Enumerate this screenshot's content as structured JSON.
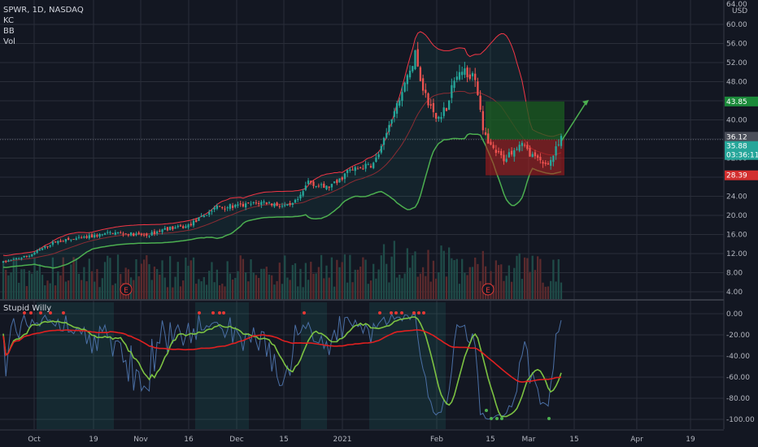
{
  "header": {
    "symbol_line": "SPWR, 1D, NASDAQ",
    "indicators": [
      "KC",
      "BB",
      "Vol"
    ],
    "currency": "USD",
    "top_clipped_tick": "64.00"
  },
  "lower_pane": {
    "title": "Stupid Willy"
  },
  "colors": {
    "background": "#131722",
    "grid": "#2a2e39",
    "up": "#26a69a",
    "down": "#ef5350",
    "keltner": "#f23645",
    "bollinger": "#4caf50",
    "volume_up": "#1f4b48",
    "volume_down": "#5a2a2d",
    "target_zone": "#1b5e20",
    "stop_zone": "#b71c1c",
    "willy_line": "#4a6fa5",
    "willy_fast": "#7cc242",
    "willy_slow": "#e02020",
    "axis_text": "#b2b5be"
  },
  "chart_data": [
    {
      "type": "candlestick",
      "symbol": "SPWR",
      "interval": "1D",
      "exchange": "NASDAQ",
      "x_ticks": [
        "Oct",
        "19",
        "Nov",
        "16",
        "Dec",
        "15",
        "2021",
        "Feb",
        "15",
        "Mar",
        "15",
        "Apr",
        "19"
      ],
      "y_ticks": [
        "60.00",
        "56.00",
        "52.00",
        "48.00",
        "44.00",
        "40.00",
        "36.00",
        "32.00",
        "28.00",
        "24.00",
        "20.00",
        "16.00",
        "12.00",
        "8.00",
        "4.00"
      ],
      "ylim": [
        2,
        63
      ],
      "price_labels": [
        {
          "text": "43.85",
          "value": 43.85,
          "color": "#1b8a3a"
        },
        {
          "text": "36.12",
          "value": 36.12,
          "color": "#4a4e59"
        },
        {
          "text": "35.88",
          "value": 35.88,
          "color": "#26a69a"
        },
        {
          "text": "03:36:11",
          "value": 34.2,
          "color": "#26a69a"
        },
        {
          "text": "28.39",
          "value": 28.39,
          "color": "#d32f2f"
        }
      ],
      "earnings_markers": [
        "E",
        "E"
      ],
      "trade_setup": {
        "entry": 35.88,
        "target": 43.85,
        "stop": 28.39
      },
      "grid": true
    },
    {
      "type": "line",
      "title": "Stupid Willy",
      "y_ticks": [
        "0.00",
        "-20.00",
        "-40.00",
        "-60.00",
        "-80.00",
        "-100.00"
      ],
      "ylim": [
        -108,
        6
      ],
      "grid": true
    }
  ]
}
